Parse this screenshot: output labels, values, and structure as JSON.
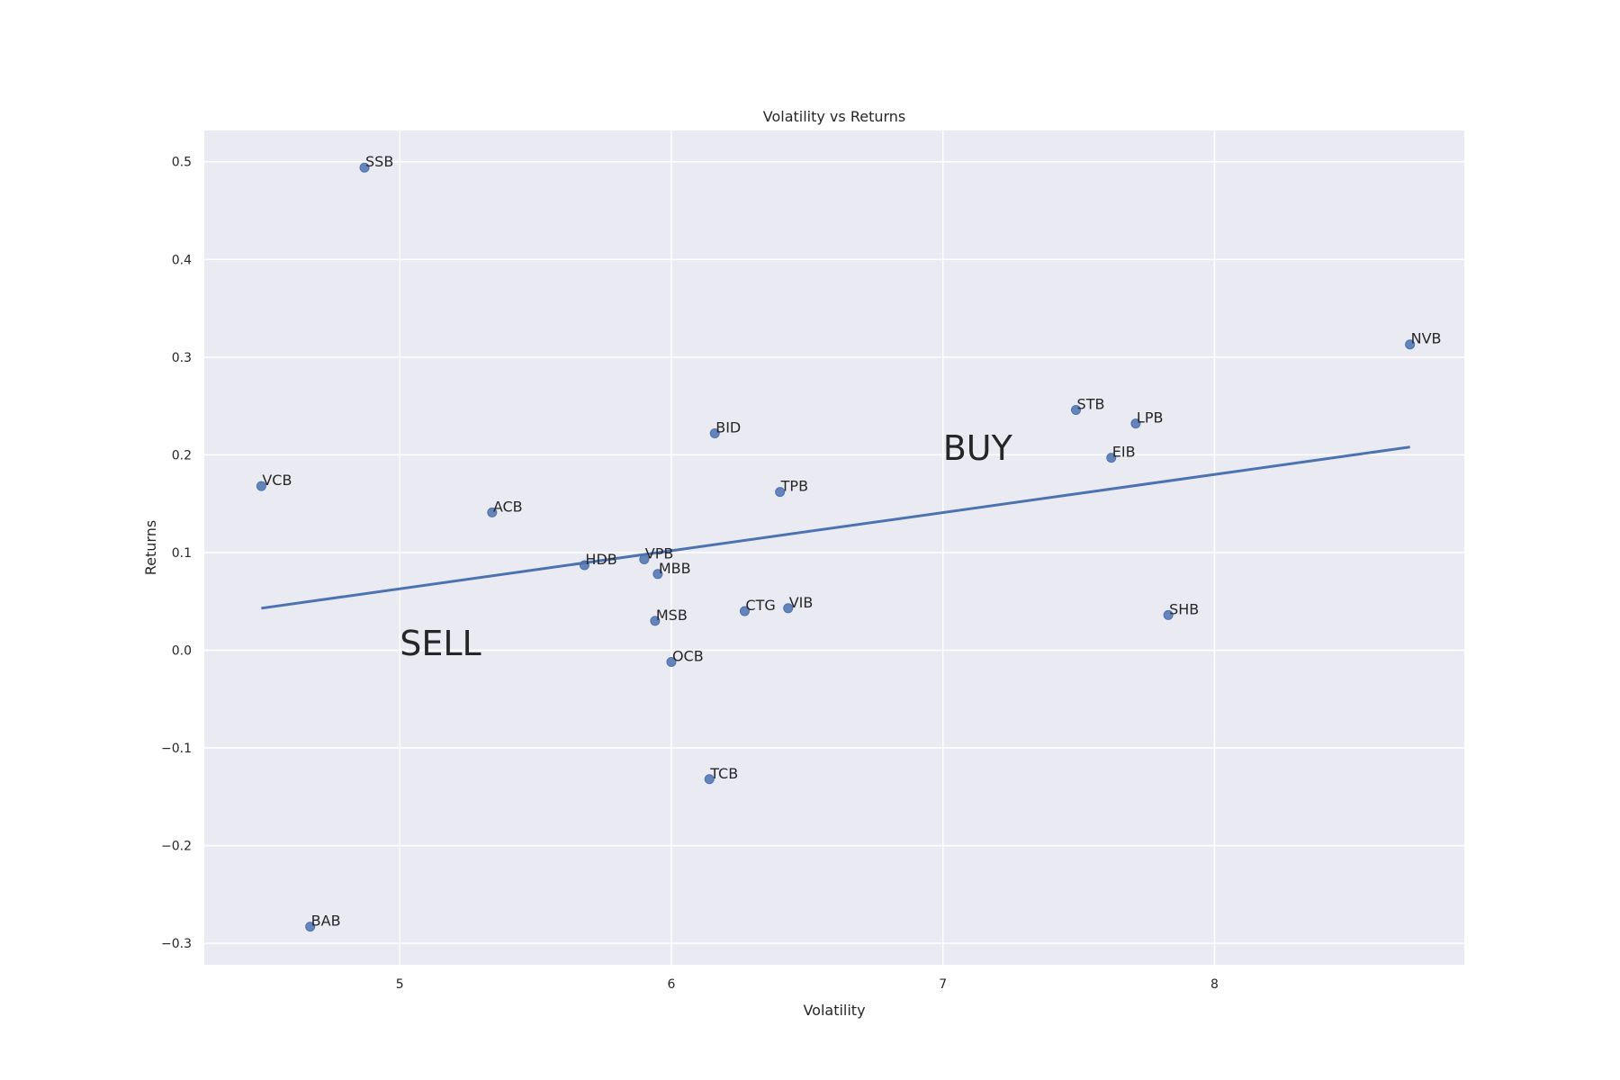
{
  "chart_data": {
    "type": "scatter",
    "title": "Volatility vs Returns",
    "xlabel": "Volatility",
    "ylabel": "Returns",
    "xlim": [
      4.28,
      8.92
    ],
    "ylim": [
      -0.322,
      0.532
    ],
    "xticks": [
      5,
      6,
      7,
      8
    ],
    "yticks": [
      -0.3,
      -0.2,
      -0.1,
      0.0,
      0.1,
      0.2,
      0.3,
      0.4,
      0.5
    ],
    "ytick_labels": [
      "−0.3",
      "−0.2",
      "−0.1",
      "0.0",
      "0.1",
      "0.2",
      "0.3",
      "0.4",
      "0.5"
    ],
    "grid": true,
    "colors": {
      "background": "#eaeaf2",
      "grid": "#ffffff",
      "point": "#4c72b0",
      "line": "#4c72b0"
    },
    "points": [
      {
        "label": "SSB",
        "x": 4.87,
        "y": 0.494
      },
      {
        "label": "VCB",
        "x": 4.49,
        "y": 0.168
      },
      {
        "label": "ACB",
        "x": 5.34,
        "y": 0.141
      },
      {
        "label": "HDB",
        "x": 5.68,
        "y": 0.087
      },
      {
        "label": "VPB",
        "x": 5.9,
        "y": 0.093
      },
      {
        "label": "MBB",
        "x": 5.95,
        "y": 0.078
      },
      {
        "label": "MSB",
        "x": 5.94,
        "y": 0.03
      },
      {
        "label": "OCB",
        "x": 6.0,
        "y": -0.012
      },
      {
        "label": "BID",
        "x": 6.16,
        "y": 0.222
      },
      {
        "label": "TCB",
        "x": 6.14,
        "y": -0.132
      },
      {
        "label": "CTG",
        "x": 6.27,
        "y": 0.04
      },
      {
        "label": "TPB",
        "x": 6.4,
        "y": 0.162
      },
      {
        "label": "VIB",
        "x": 6.43,
        "y": 0.043
      },
      {
        "label": "STB",
        "x": 7.49,
        "y": 0.246
      },
      {
        "label": "EIB",
        "x": 7.62,
        "y": 0.197
      },
      {
        "label": "LPB",
        "x": 7.71,
        "y": 0.232
      },
      {
        "label": "SHB",
        "x": 7.83,
        "y": 0.036
      },
      {
        "label": "NVB",
        "x": 8.72,
        "y": 0.313
      },
      {
        "label": "BAB",
        "x": 4.67,
        "y": -0.283
      }
    ],
    "trendline": {
      "x": [
        4.49,
        8.72
      ],
      "y": [
        0.043,
        0.208
      ]
    },
    "annotations": [
      {
        "text": "BUY",
        "x": 7.0,
        "y": 0.195
      },
      {
        "text": "SELL",
        "x": 5.0,
        "y": -0.005
      }
    ]
  }
}
